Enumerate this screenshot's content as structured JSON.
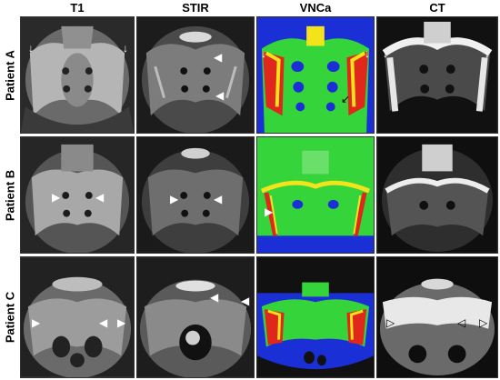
{
  "columns": [
    {
      "label": "T1"
    },
    {
      "label": "STIR"
    },
    {
      "label": "VNCa"
    },
    {
      "label": "CT"
    }
  ],
  "rows": [
    {
      "label": "Patient A"
    },
    {
      "label": "Patient B"
    },
    {
      "label": "Patient C"
    }
  ],
  "palette": {
    "mri_bg": "#1a1a1a",
    "mri_bone": "#cfcfcf",
    "ct_bg": "#111111",
    "ct_bone": "#f0f0f0",
    "vnca_bg": "#1b2fd6",
    "vnca_green": "#35d43a",
    "vnca_yellow": "#f2e31a",
    "vnca_red": "#e0271b"
  },
  "icons": [
    "arrow-icon",
    "arrowhead-icon"
  ]
}
